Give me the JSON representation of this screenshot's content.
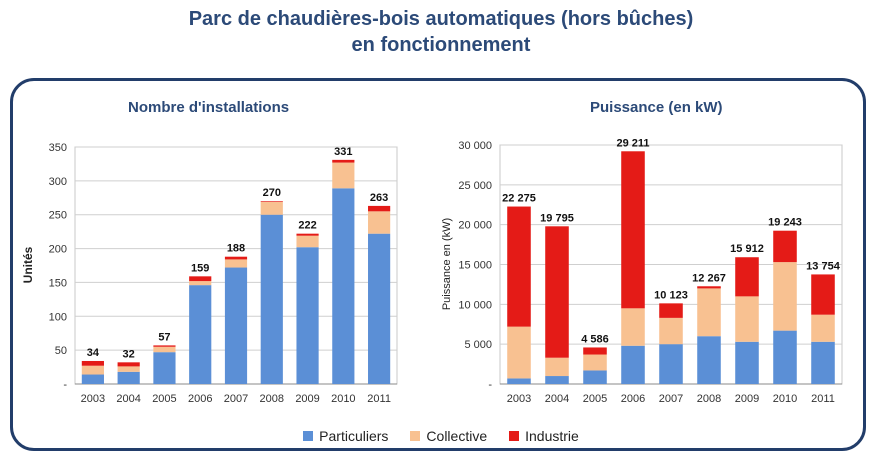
{
  "page": {
    "title_line1": "Parc de chaudières-bois automatiques (hors bûches)",
    "title_line2": "en fonctionnement"
  },
  "colors": {
    "particuliers": "#5b8fd6",
    "collective": "#f8c191",
    "industrie": "#e41b17"
  },
  "chart_data": [
    {
      "type": "bar",
      "stacked": true,
      "title": "Nombre d'installations",
      "ylabel": "Unités",
      "xlabel": "",
      "ylim": [
        0,
        350
      ],
      "yticks": [
        0,
        50,
        100,
        150,
        200,
        250,
        300,
        350
      ],
      "ytick_labels": [
        "-",
        "50",
        "100",
        "150",
        "200",
        "250",
        "300",
        "350"
      ],
      "grid": true,
      "categories": [
        "2003",
        "2004",
        "2005",
        "2006",
        "2007",
        "2008",
        "2009",
        "2010",
        "2011"
      ],
      "series": [
        {
          "name": "Particuliers",
          "values": [
            14,
            18,
            47,
            146,
            172,
            250,
            202,
            289,
            222
          ]
        },
        {
          "name": "Collective",
          "values": [
            13,
            8,
            8,
            6,
            12,
            19,
            17,
            38,
            33
          ]
        },
        {
          "name": "Industrie",
          "values": [
            7,
            6,
            2,
            7,
            4,
            1,
            3,
            4,
            8
          ]
        }
      ],
      "total_labels": [
        "34",
        "32",
        "57",
        "159",
        "188",
        "270",
        "222",
        "331",
        "263"
      ],
      "totals": [
        34,
        32,
        57,
        159,
        188,
        270,
        222,
        331,
        263
      ]
    },
    {
      "type": "bar",
      "stacked": true,
      "title": "Puissance (en kW)",
      "ylabel": "Puissance en (kW)",
      "xlabel": "",
      "ylim": [
        0,
        30000
      ],
      "yticks": [
        0,
        5000,
        10000,
        15000,
        20000,
        25000,
        30000
      ],
      "ytick_labels": [
        "-",
        "5 000",
        "10 000",
        "15 000",
        "20 000",
        "25 000",
        "30 000"
      ],
      "grid": true,
      "categories": [
        "2003",
        "2004",
        "2005",
        "2006",
        "2007",
        "2008",
        "2009",
        "2010",
        "2011"
      ],
      "series": [
        {
          "name": "Particuliers",
          "values": [
            700,
            1000,
            1700,
            4800,
            5000,
            6000,
            5300,
            6700,
            5300
          ]
        },
        {
          "name": "Collective",
          "values": [
            6500,
            2300,
            2000,
            4700,
            3300,
            6000,
            5700,
            8600,
            3400
          ]
        },
        {
          "name": "Industrie",
          "values": [
            15075,
            16495,
            886,
            19711,
            1823,
            267,
            4912,
            3943,
            5054
          ]
        }
      ],
      "total_labels": [
        "22 275",
        "19 795",
        "4 586",
        "29 211",
        "10 123",
        "12 267",
        "15 912",
        "19 243",
        "13 754"
      ],
      "totals": [
        22275,
        19795,
        4586,
        29211,
        10123,
        12267,
        15912,
        19243,
        13754
      ]
    }
  ],
  "legend": [
    {
      "label": "Particuliers",
      "color": "#5b8fd6"
    },
    {
      "label": "Collective",
      "color": "#f8c191"
    },
    {
      "label": "Industrie",
      "color": "#e41b17"
    }
  ]
}
